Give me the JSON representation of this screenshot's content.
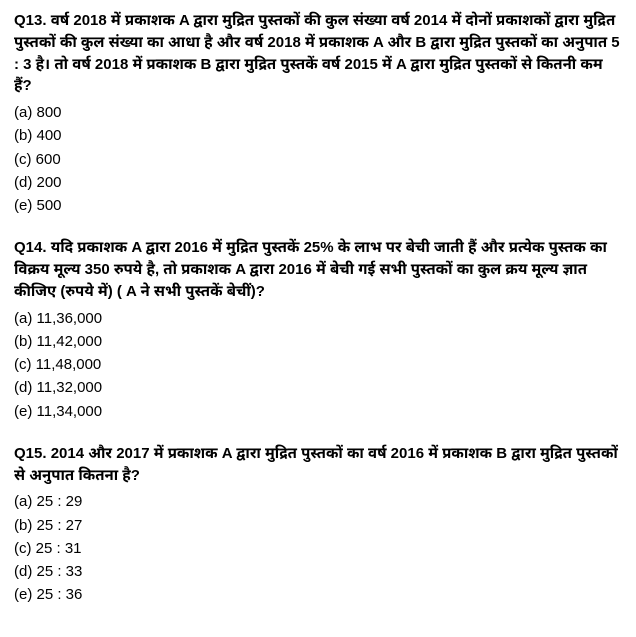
{
  "questions": [
    {
      "number": "Q13.",
      "text": "वर्ष 2018 में प्रकाशक A द्वारा मुद्रित पुस्तकों की कुल संख्या वर्ष 2014 में दोनों प्रकाशकों द्वारा मुद्रित पुस्तकों की कुल संख्या का आधा है और वर्ष 2018 में प्रकाशक A और B द्वारा मुद्रित पुस्तकों का अनुपात 5 : 3 है। तो वर्ष 2018 में प्रकाशक B द्वारा मुद्रित पुस्तकें वर्ष 2015 में A द्वारा मुद्रित पुस्तकों से कितनी कम हैं?",
      "options": [
        "(a) 800",
        "(b) 400",
        "(c) 600",
        "(d) 200",
        "(e)  500"
      ]
    },
    {
      "number": "Q14.",
      "text": "यदि प्रकाशक A द्वारा 2016 में मुद्रित पुस्तकें 25% के लाभ पर बेची जाती हैं और प्रत्येक पुस्तक का विक्रय मूल्य 350 रुपये है, तो प्रकाशक A द्वारा 2016 में बेची गई सभी पुस्तकों का कुल क्रय मूल्य ज्ञात कीजिए (रुपये में) ( A ने सभी पुस्तकें बेचीं)?",
      "options": [
        "(a)  11,36,000",
        "(b)  11,42,000",
        "(c)  11,48,000",
        "(d)  11,32,000",
        "(e) 11,34,000"
      ]
    },
    {
      "number": "Q15.",
      "text": "2014 और 2017 में प्रकाशक A द्वारा मुद्रित पुस्तकों का वर्ष 2016 में प्रकाशक B द्वारा मुद्रित पुस्तकों से अनुपात कितना है?",
      "options": [
        "(a) 25 : 29",
        "(b)  25 : 27",
        "(c)  25 : 31",
        "(d) 25 : 33",
        "(e) 25 : 36"
      ]
    }
  ]
}
